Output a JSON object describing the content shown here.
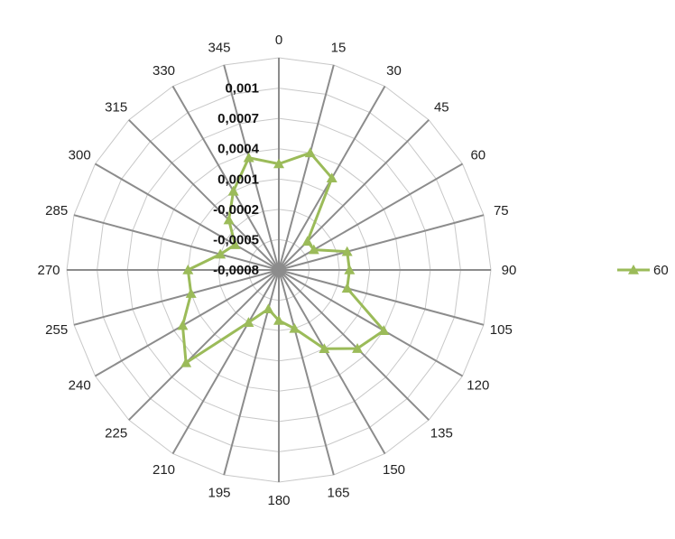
{
  "chart_data": {
    "type": "radar",
    "categories": [
      "0",
      "15",
      "30",
      "45",
      "60",
      "75",
      "90",
      "105",
      "120",
      "135",
      "150",
      "165",
      "180",
      "195",
      "210",
      "225",
      "240",
      "255",
      "270",
      "285",
      "300",
      "315",
      "330",
      "345"
    ],
    "radial_ticks": [
      "-0,0008",
      "-0,0005",
      "-0,0002",
      "0,0001",
      "0,0004",
      "0,0007",
      "0,001"
    ],
    "rlim": [
      -0.0008,
      0.0013
    ],
    "grid": true,
    "series": [
      {
        "name": "60",
        "color": "#9bbb59",
        "marker": "triangle",
        "values": [
          0.00025,
          0.0004,
          0.00025,
          -0.0004,
          -0.0004,
          -0.0001,
          -0.0001,
          -0.0001,
          0.0004,
          0.0003,
          0.0001,
          -0.0002,
          -0.0003,
          -0.0004,
          -0.0002,
          0.0005,
          0.0003,
          0.0001,
          0.0001,
          -0.0002,
          -0.0003,
          -0.0001,
          0.0001,
          0.00035
        ]
      }
    ],
    "legend": "right"
  }
}
